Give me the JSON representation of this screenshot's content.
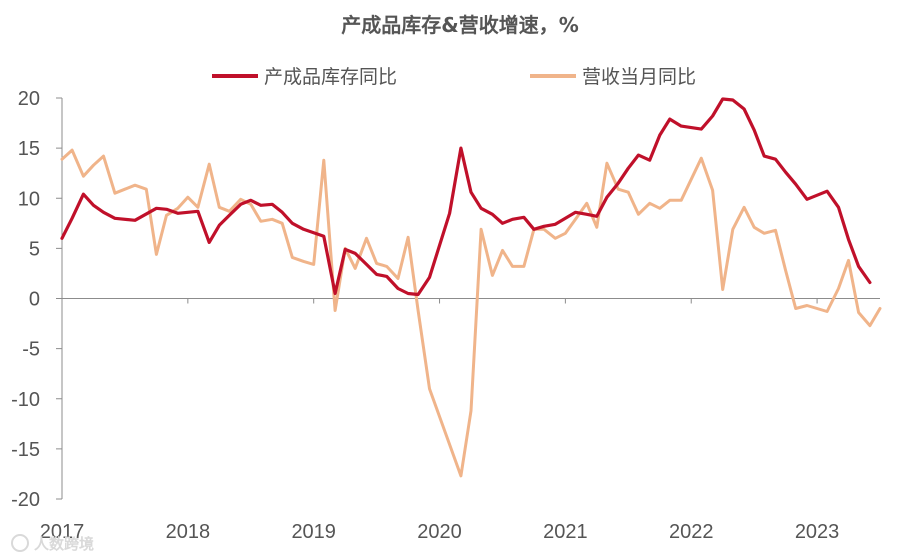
{
  "chart_data": {
    "type": "line",
    "title": "产成品库存&营收增速，%",
    "xlabel": "",
    "ylabel": "",
    "ylim": [
      -20,
      20
    ],
    "yticks": [
      20,
      15,
      10,
      5,
      0,
      -5,
      -10,
      -15,
      -20
    ],
    "xticks": [
      "2017",
      "2018",
      "2019",
      "2020",
      "2021",
      "2022",
      "2023"
    ],
    "legend_position": "top",
    "grid": false,
    "series": [
      {
        "name": "产成品库存同比",
        "color": "#c0102a",
        "x": [
          2017.0,
          2017.08,
          2017.17,
          2017.25,
          2017.33,
          2017.42,
          2017.58,
          2017.75,
          2017.83,
          2017.92,
          2018.08,
          2018.17,
          2018.25,
          2018.33,
          2018.42,
          2018.5,
          2018.58,
          2018.67,
          2018.75,
          2018.83,
          2018.92,
          2019.08,
          2019.17,
          2019.25,
          2019.33,
          2019.42,
          2019.5,
          2019.58,
          2019.67,
          2019.75,
          2019.83,
          2019.92,
          2020.08,
          2020.17,
          2020.25,
          2020.33,
          2020.42,
          2020.5,
          2020.58,
          2020.67,
          2020.75,
          2020.83,
          2020.92,
          2021.08,
          2021.17,
          2021.25,
          2021.33,
          2021.42,
          2021.5,
          2021.58,
          2021.67,
          2021.75,
          2021.83,
          2021.92,
          2022.08,
          2022.17,
          2022.25,
          2022.33,
          2022.42,
          2022.5,
          2022.58,
          2022.67,
          2022.75,
          2022.83,
          2022.92,
          2023.08,
          2023.17,
          2023.25,
          2023.33,
          2023.42
        ],
        "y": [
          6.0,
          8.0,
          10.4,
          9.3,
          8.6,
          8.0,
          7.8,
          9.0,
          8.9,
          8.5,
          8.7,
          5.6,
          7.3,
          8.3,
          9.4,
          9.8,
          9.3,
          9.4,
          8.6,
          7.5,
          6.9,
          6.2,
          0.5,
          4.9,
          4.5,
          3.4,
          2.4,
          2.2,
          1.0,
          0.5,
          0.4,
          2.1,
          8.5,
          15.0,
          10.6,
          9.0,
          8.4,
          7.5,
          7.9,
          8.1,
          6.9,
          7.2,
          7.4,
          8.6,
          8.4,
          8.2,
          10.1,
          11.5,
          13.0,
          14.3,
          13.8,
          16.3,
          17.9,
          17.2,
          16.9,
          18.2,
          19.9,
          19.8,
          18.9,
          16.8,
          14.2,
          13.9,
          12.6,
          11.4,
          9.9,
          10.7,
          9.1,
          5.9,
          3.2,
          1.6
        ]
      },
      {
        "name": "营收当月同比",
        "color": "#f0b48a",
        "x": [
          2017.0,
          2017.08,
          2017.17,
          2017.25,
          2017.33,
          2017.42,
          2017.5,
          2017.58,
          2017.67,
          2017.75,
          2017.83,
          2017.92,
          2018.0,
          2018.08,
          2018.17,
          2018.25,
          2018.33,
          2018.42,
          2018.5,
          2018.58,
          2018.67,
          2018.75,
          2018.83,
          2018.92,
          2019.0,
          2019.08,
          2019.17,
          2019.25,
          2019.33,
          2019.42,
          2019.5,
          2019.58,
          2019.67,
          2019.75,
          2019.83,
          2019.92,
          2020.17,
          2020.25,
          2020.33,
          2020.42,
          2020.5,
          2020.58,
          2020.67,
          2020.75,
          2020.83,
          2020.92,
          2021.0,
          2021.08,
          2021.17,
          2021.25,
          2021.33,
          2021.42,
          2021.5,
          2021.58,
          2021.67,
          2021.75,
          2021.83,
          2021.92,
          2022.08,
          2022.17,
          2022.25,
          2022.33,
          2022.42,
          2022.5,
          2022.58,
          2022.67,
          2022.75,
          2022.83,
          2022.92,
          2023.08,
          2023.17,
          2023.25,
          2023.33,
          2023.42,
          2023.5
        ],
        "y": [
          13.9,
          14.8,
          12.2,
          13.3,
          14.2,
          10.5,
          10.9,
          11.3,
          10.9,
          4.4,
          8.3,
          9.0,
          10.1,
          9.1,
          13.4,
          9.1,
          8.7,
          9.9,
          9.4,
          7.7,
          7.9,
          7.5,
          4.1,
          3.7,
          3.4,
          13.8,
          -1.2,
          5.0,
          3.0,
          6.0,
          3.5,
          3.2,
          2.0,
          6.1,
          -1.2,
          -9.0,
          -17.7,
          -11.2,
          6.9,
          2.3,
          4.8,
          3.2,
          3.2,
          6.9,
          6.9,
          6.0,
          6.5,
          7.9,
          9.5,
          7.1,
          13.5,
          10.9,
          10.6,
          8.4,
          9.5,
          9.0,
          9.8,
          9.8,
          14.0,
          10.8,
          0.9,
          6.9,
          9.1,
          7.1,
          6.5,
          6.8,
          2.8,
          -1.0,
          -0.7,
          -1.3,
          1.0,
          3.8,
          -1.4,
          -2.7,
          -1.0
        ]
      }
    ]
  },
  "watermark": {
    "text": "人数跨境"
  }
}
